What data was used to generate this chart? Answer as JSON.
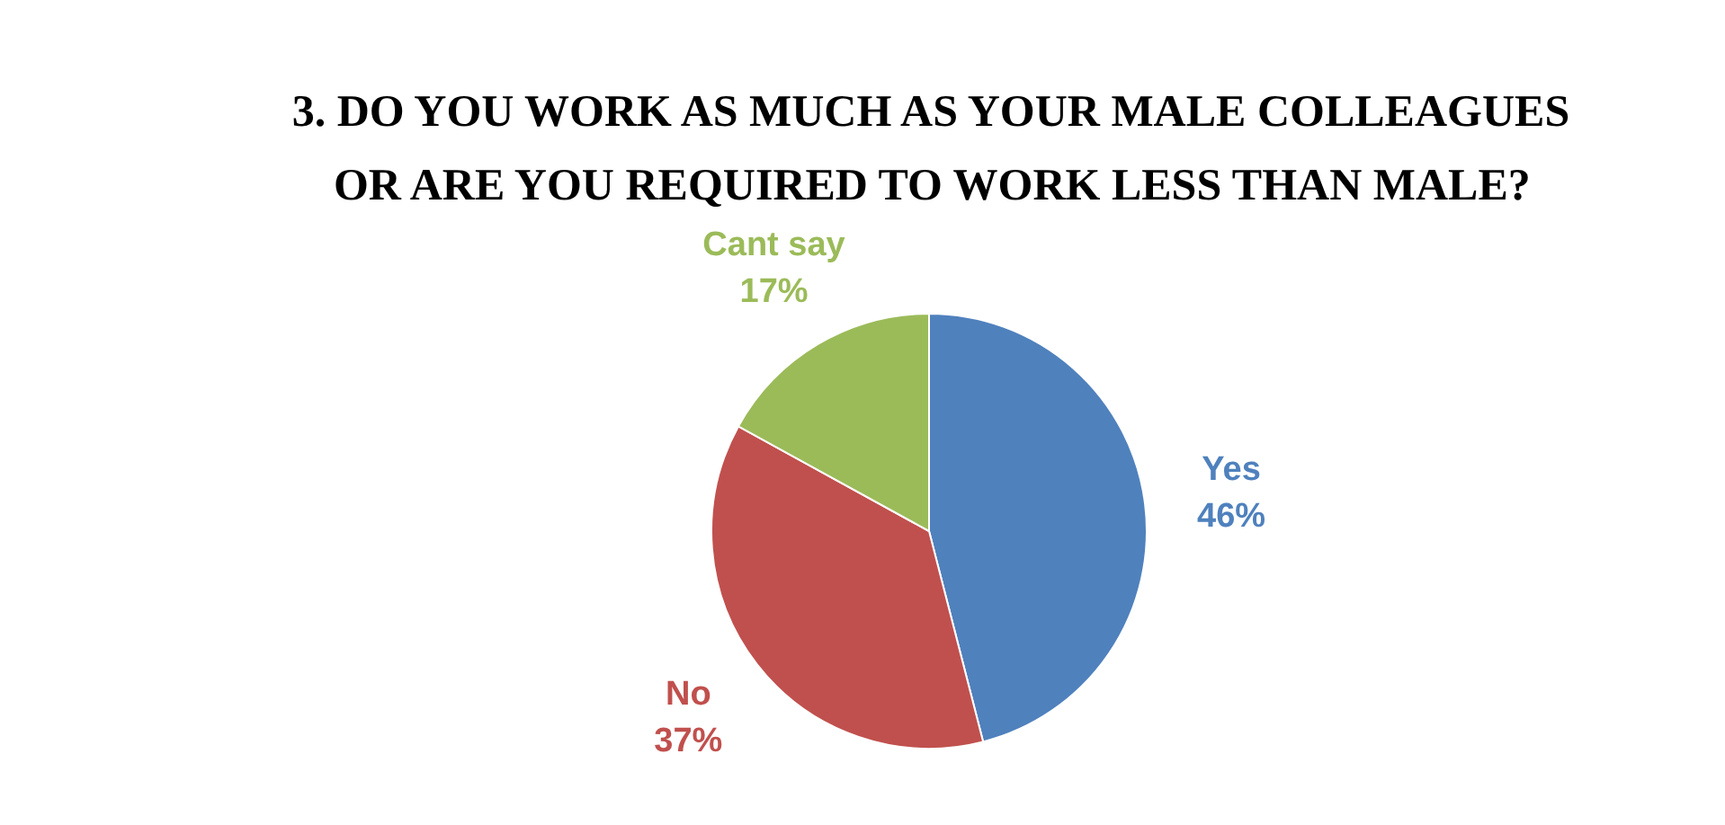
{
  "chart_data": {
    "type": "pie",
    "title": "3. DO YOU WORK AS MUCH AS YOUR MALE COLLEAGUES\nOR ARE YOU REQUIRED TO WORK LESS THAN MALE?",
    "categories": [
      "Yes",
      "No",
      "Cant say"
    ],
    "values": [
      46,
      37,
      17
    ],
    "colors": [
      "#4f81bd",
      "#c0504d",
      "#9bbb59"
    ],
    "value_labels": [
      "46%",
      "37%",
      "17%"
    ]
  }
}
